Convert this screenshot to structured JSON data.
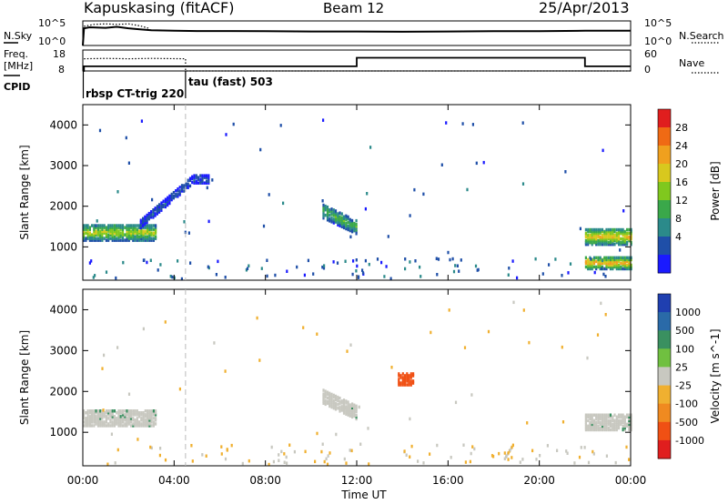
{
  "header": {
    "station": "Kapuskasing (fitACF)",
    "beam": "Beam 12",
    "date": "25/Apr/2013"
  },
  "chart_data": [
    {
      "type": "line",
      "panel": "noise",
      "left_label": "N.Sky",
      "right_label": "N.Search",
      "left_ticks": [
        "10^5",
        "10^0"
      ],
      "right_ticks": [
        "10^5",
        "10^0"
      ],
      "series": [
        {
          "name": "N.Sky",
          "style": "solid",
          "x_hours": [
            0.0,
            0.05,
            0.3,
            1.0,
            1.5,
            2.0,
            2.5,
            3.0,
            4.0,
            5.0,
            6.0,
            8.0,
            10.0,
            12.0,
            14.0,
            16.0,
            18.0,
            20.0,
            22.0,
            24.0
          ],
          "log_values": [
            0,
            3.5,
            3.7,
            3.6,
            3.8,
            3.5,
            3.3,
            3.1,
            3.0,
            2.95,
            2.95,
            2.9,
            2.85,
            2.85,
            2.8,
            2.85,
            2.9,
            2.9,
            3.0,
            3.0
          ]
        },
        {
          "name": "N.Search",
          "style": "dotted",
          "x_hours": [
            0.05,
            0.5,
            1.0,
            1.5,
            2.0,
            2.5,
            2.9
          ],
          "log_values": [
            3.9,
            4.3,
            4.4,
            4.3,
            4.4,
            4.0,
            3.5
          ]
        }
      ]
    },
    {
      "type": "line",
      "panel": "frequency",
      "left_label": "Freq. [MHz]",
      "right_label": "Nave",
      "left_ticks": [
        "18",
        "8"
      ],
      "right_ticks": [
        "60",
        "0"
      ],
      "cpid_label": "CPID",
      "series": [
        {
          "name": "Freq.",
          "style": "solid",
          "x_hours": [
            0.0,
            0.05,
            0.05,
            12.0,
            12.0,
            22.0,
            22.0,
            24.0
          ],
          "values": [
            8,
            8,
            10.2,
            10.2,
            14.3,
            14.3,
            10.2,
            10.2
          ]
        },
        {
          "name": "Nave",
          "style": "dotted",
          "x_hours": [
            0.05,
            1.0,
            2.0,
            3.0,
            4.5,
            4.5,
            24.0
          ],
          "values": [
            35,
            36,
            35,
            36,
            35,
            0,
            0
          ]
        }
      ],
      "cpid_segments": [
        {
          "start_h": 0.0,
          "label": "rbsp CT-trig 220"
        },
        {
          "start_h": 4.5,
          "label": "tau (fast) 503"
        }
      ]
    },
    {
      "type": "heatmap",
      "panel": "power",
      "ylabel": "Slant Range [km]",
      "xlim": [
        0,
        24
      ],
      "ylim": [
        180,
        4500
      ],
      "yticks": [
        "1000",
        "2000",
        "3000",
        "4000"
      ],
      "colorbar_label": "Power [dB]",
      "colorbar_ticks": [
        "4",
        "8",
        "12",
        "16",
        "20",
        "24",
        "28"
      ],
      "colorbar_colors": [
        "#1a1aff",
        "#1f4fa8",
        "#2b8a8a",
        "#3aa84a",
        "#80c81e",
        "#d8c81e",
        "#f0a01e",
        "#f06a14",
        "#e01e1e"
      ],
      "features": [
        {
          "region": "morning echo band",
          "start_h": 0.0,
          "end_h": 3.2,
          "range_km": [
            1200,
            1600
          ],
          "power_db": 16
        },
        {
          "region": "rising arc",
          "start_h": 2.5,
          "end_h": 5.5,
          "range_km": [
            1600,
            2700
          ],
          "power_db": 5
        },
        {
          "region": "afternoon band",
          "start_h": 10.5,
          "end_h": 12.0,
          "range_km": [
            1300,
            1900
          ],
          "power_db": 12
        },
        {
          "region": "evening band",
          "start_h": 22.0,
          "end_h": 24.0,
          "range_km": [
            1100,
            1500
          ],
          "power_db": 18
        },
        {
          "region": "near ranges",
          "start_h": 22.0,
          "end_h": 24.0,
          "range_km": [
            500,
            800
          ],
          "power_db": 20
        }
      ]
    },
    {
      "type": "heatmap",
      "panel": "velocity",
      "ylabel": "Slant Range [km]",
      "xlabel": "Time UT",
      "xlim": [
        0,
        24
      ],
      "ylim": [
        180,
        4500
      ],
      "yticks": [
        "1000",
        "2000",
        "3000",
        "4000"
      ],
      "xticks": [
        "00:00",
        "04:00",
        "08:00",
        "12:00",
        "16:00",
        "20:00",
        "00:00"
      ],
      "colorbar_label": "Velocity [m s^-1]",
      "colorbar_ticks": [
        "1000",
        "500",
        "100",
        "25",
        "-25",
        "-100",
        "-500",
        "-1000"
      ],
      "colorbar_colors": [
        "#1f3fb0",
        "#2a6aa8",
        "#3a9060",
        "#70c040",
        "#c8c8c0",
        "#f0b030",
        "#f08a20",
        "#f05014",
        "#e01e1e"
      ],
      "features": [
        {
          "region": "morning band ground scatter",
          "start_h": 0.0,
          "end_h": 3.2,
          "range_km": [
            1200,
            1600
          ],
          "velocity": 0
        },
        {
          "region": "afternoon band",
          "start_h": 10.5,
          "end_h": 12.0,
          "range_km": [
            1300,
            1900
          ],
          "velocity": 0
        },
        {
          "region": "evening band",
          "start_h": 22.0,
          "end_h": 24.0,
          "range_km": [
            1100,
            1500
          ],
          "velocity": 0
        },
        {
          "region": "red patch",
          "start_h": 13.8,
          "end_h": 14.5,
          "range_km": [
            2200,
            2500
          ],
          "velocity": -600
        }
      ]
    }
  ]
}
